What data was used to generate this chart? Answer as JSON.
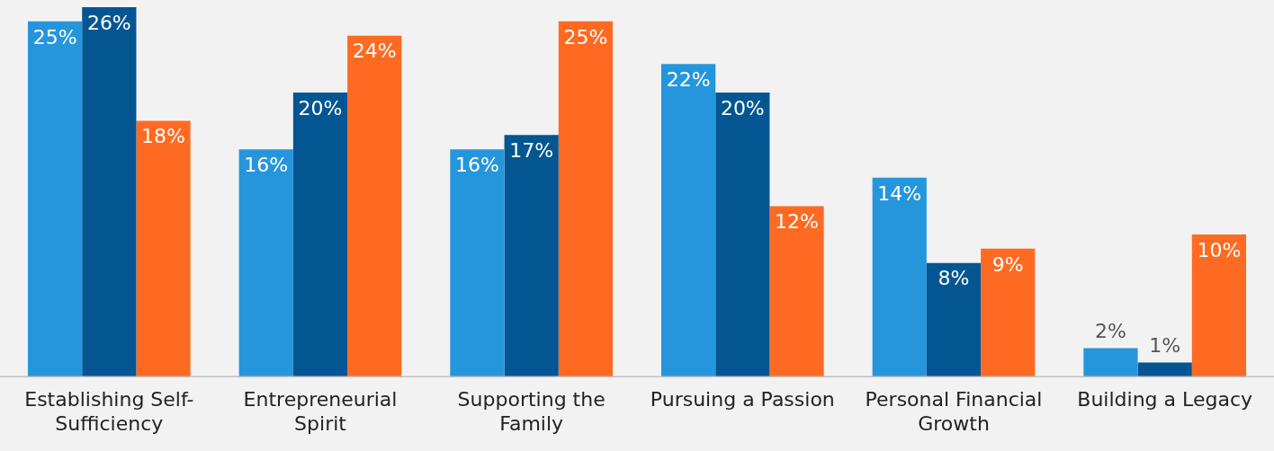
{
  "chart_data": {
    "type": "bar",
    "categories": [
      "Establishing Self-Sufficiency",
      "Entrepreneurial Spirit",
      "Supporting the Family",
      "Pursuing a Passion",
      "Personal Financial Growth",
      "Building a Legacy"
    ],
    "series": [
      {
        "color": "#2596dc",
        "values": [
          25,
          16,
          16,
          22,
          14,
          2
        ],
        "value_labels": [
          "25%",
          "16%",
          "16%",
          "22%",
          "14%",
          "2%"
        ]
      },
      {
        "color": "#045692",
        "values": [
          26,
          20,
          17,
          20,
          8,
          1
        ],
        "value_labels": [
          "26%",
          "20%",
          "17%",
          "20%",
          "8%",
          "1%"
        ]
      },
      {
        "color": "#ff6a22",
        "values": [
          18,
          24,
          25,
          12,
          9,
          10
        ],
        "value_labels": [
          "18%",
          "24%",
          "25%",
          "12%",
          "9%",
          "10%"
        ]
      }
    ],
    "grid": false,
    "legend": false
  }
}
